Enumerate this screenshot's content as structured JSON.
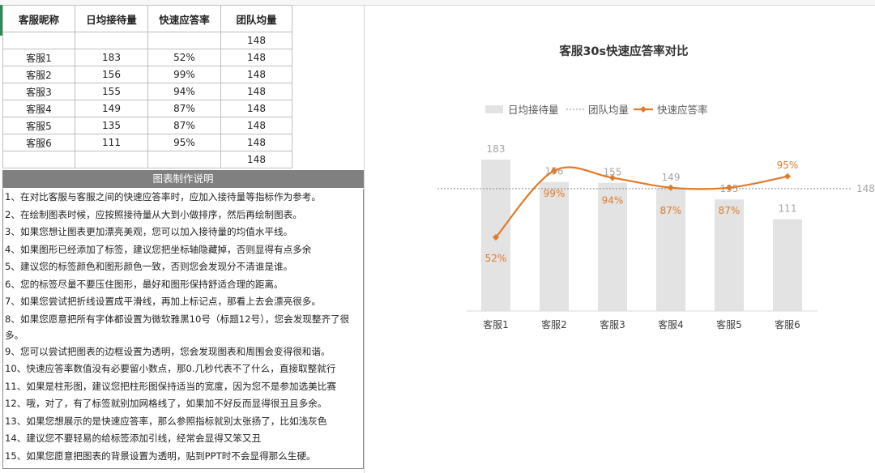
{
  "table": {
    "headers": [
      "客服昵称",
      "日均接待量",
      "快速应答率",
      "团队均量"
    ],
    "rows": [
      [
        "",
        "",
        "",
        "148"
      ],
      [
        "客服1",
        "183",
        "52%",
        "148"
      ],
      [
        "客服2",
        "156",
        "99%",
        "148"
      ],
      [
        "客服3",
        "155",
        "94%",
        "148"
      ],
      [
        "客服4",
        "149",
        "87%",
        "148"
      ],
      [
        "客服5",
        "135",
        "87%",
        "148"
      ],
      [
        "客服6",
        "111",
        "95%",
        "148"
      ],
      [
        "",
        "",
        "",
        "148"
      ]
    ]
  },
  "notes": {
    "header": "图表制作说明",
    "lines": [
      "1、在对比客服与客服之间的快速应答率时，应加入接待量等指标作为参考。",
      "2、在绘制图表时候，应按照接待量从大到小做排序，然后再绘制图表。",
      "3、如果您想让图表更加漂亮美观，您可以加入接待量的均值水平线。",
      "4、如果图形已经添加了标签，建议您把坐标轴隐藏掉，否则显得有点多余",
      "5、建议您的标签颜色和图形颜色一致，否则您会发现分不清谁是谁。",
      "6、您的标签尽量不要压住图形，最好和图形保持舒适合理的距离。",
      "7、如果您尝试把折线设置成平滑线，再加上标记点，那看上去会漂亮很多。",
      "8、如果您愿意把所有字体都设置为微软雅黑10号（标题12号），您会发现整齐了很多。",
      "9、您可以尝试把图表的边框设置为透明，您会发现图表和周围会变得很和谐。",
      "10、快速应答率数值没有必要留小数点，那0.几秒代表不了什么，直接取整就行",
      "11、如果是柱形图，建议您把柱形图保持适当的宽度，因为您不是参加选美比赛",
      "12、哦，对了，有了标签就别加网格线了，如果加不好反而显得很丑且多余。",
      "13、如果您想展示的是快速应答率，那么参照指标就别太张扬了，比如浅灰色",
      "14、建议您不要轻易的给标签添加引线，经常会显得又笨又丑",
      "15、如果您愿意把图表的背景设置为透明，贴到PPT时不会显得那么生硬。"
    ]
  },
  "chart_data": {
    "type": "bar",
    "title": "客服30s快速应答率对比",
    "categories": [
      "客服1",
      "客服2",
      "客服3",
      "客服4",
      "客服5",
      "客服6"
    ],
    "legend_position": "top",
    "legend": [
      "日均接待量",
      "团队均量",
      "快速应答率"
    ],
    "series": [
      {
        "name": "日均接待量",
        "kind": "bar",
        "values": [
          183,
          156,
          155,
          149,
          135,
          111
        ],
        "labels": [
          "183",
          "156",
          "155",
          "149",
          "135",
          "111"
        ],
        "color": "#e3e3e3",
        "label_color": "#a6a6a6"
      },
      {
        "name": "团队均量",
        "kind": "reference_line",
        "value": 148,
        "label": "148",
        "color": "#8c8c8c"
      },
      {
        "name": "快速应答率",
        "kind": "line",
        "smooth": true,
        "values": [
          52,
          99,
          94,
          87,
          87,
          95
        ],
        "labels": [
          "52%",
          "99%",
          "94%",
          "87%",
          "87%",
          "95%"
        ],
        "color": "#e07b2a"
      }
    ],
    "bar_axis_range": [
      0,
      190
    ],
    "rate_axis_range": [
      0,
      140
    ],
    "grid": false,
    "axes_visible": false
  }
}
